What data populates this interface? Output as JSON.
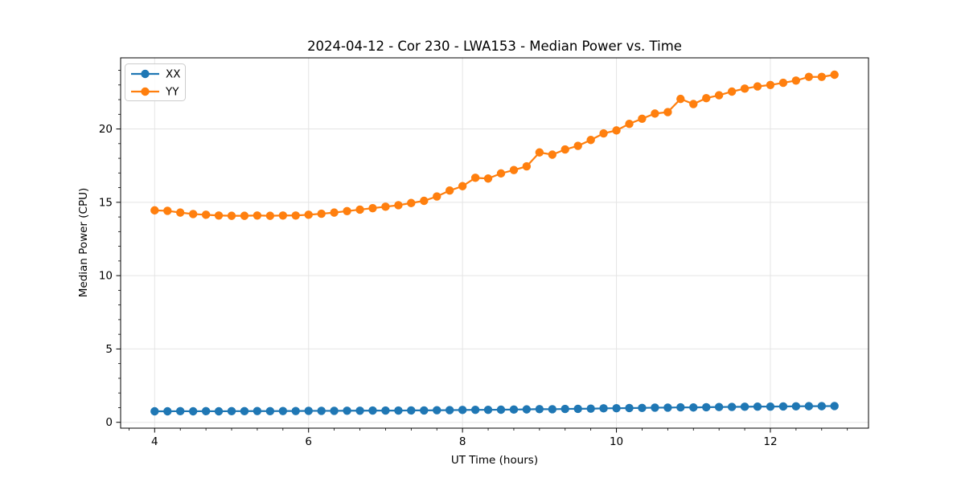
{
  "chart_data": {
    "type": "line",
    "title": "2024-04-12 - Cor 230 - LWA153 - Median Power vs. Time",
    "xlabel": "UT Time (hours)",
    "ylabel": "Median Power (CPU)",
    "xlim": [
      3.558,
      13.275
    ],
    "ylim": [
      -0.4,
      24.85
    ],
    "x_ticks": [
      4,
      6,
      8,
      10,
      12
    ],
    "y_ticks": [
      0,
      5,
      10,
      15,
      20
    ],
    "x_minor_interval": 0.3333,
    "y_minor_interval": 1,
    "grid": true,
    "legend_position": "upper-left",
    "x": [
      4.0,
      4.167,
      4.333,
      4.5,
      4.667,
      4.833,
      5.0,
      5.167,
      5.333,
      5.5,
      5.667,
      5.833,
      6.0,
      6.167,
      6.333,
      6.5,
      6.667,
      6.833,
      7.0,
      7.167,
      7.333,
      7.5,
      7.667,
      7.833,
      8.0,
      8.167,
      8.333,
      8.5,
      8.667,
      8.833,
      9.0,
      9.167,
      9.333,
      9.5,
      9.667,
      9.833,
      10.0,
      10.167,
      10.333,
      10.5,
      10.667,
      10.833,
      11.0,
      11.167,
      11.333,
      11.5,
      11.667,
      11.833,
      12.0,
      12.167,
      12.333,
      12.5,
      12.667,
      12.833
    ],
    "series": [
      {
        "name": "XX",
        "color": "#1f77b4",
        "values": [
          0.75,
          0.75,
          0.76,
          0.75,
          0.76,
          0.75,
          0.76,
          0.76,
          0.77,
          0.76,
          0.77,
          0.77,
          0.78,
          0.78,
          0.78,
          0.79,
          0.79,
          0.8,
          0.8,
          0.8,
          0.81,
          0.81,
          0.82,
          0.83,
          0.84,
          0.85,
          0.85,
          0.86,
          0.87,
          0.88,
          0.9,
          0.89,
          0.91,
          0.92,
          0.93,
          0.95,
          0.96,
          0.97,
          0.98,
          1.0,
          1.0,
          1.02,
          1.01,
          1.03,
          1.04,
          1.05,
          1.06,
          1.07,
          1.07,
          1.08,
          1.09,
          1.1,
          1.1,
          1.11
        ]
      },
      {
        "name": "YY",
        "color": "#ff7f0e",
        "values": [
          14.45,
          14.42,
          14.3,
          14.2,
          14.15,
          14.1,
          14.08,
          14.08,
          14.1,
          14.08,
          14.1,
          14.1,
          14.15,
          14.22,
          14.3,
          14.4,
          14.5,
          14.6,
          14.7,
          14.8,
          14.95,
          15.1,
          15.4,
          15.8,
          16.1,
          16.67,
          16.62,
          16.97,
          17.2,
          17.45,
          18.4,
          18.25,
          18.6,
          18.85,
          19.25,
          19.7,
          19.9,
          20.35,
          20.7,
          21.05,
          21.15,
          22.05,
          21.7,
          22.1,
          22.3,
          22.55,
          22.75,
          22.9,
          23.0,
          23.15,
          23.3,
          23.55,
          23.55,
          23.7
        ]
      }
    ]
  },
  "styles": {
    "grid_color": "#e4e4e4",
    "spine_color": "#000000",
    "legend_border": "#cccccc",
    "text_color": "#000000"
  }
}
